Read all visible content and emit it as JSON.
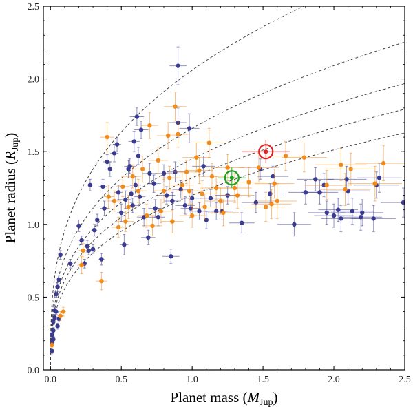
{
  "chart_data": {
    "type": "scatter",
    "title": "",
    "xlabel": {
      "prefix": "Planet mass (",
      "symbol": "M",
      "sub": "Jup",
      "suffix": ")"
    },
    "ylabel": {
      "prefix": "Planet radius (",
      "symbol": "R",
      "sub": "Jup",
      "suffix": ")"
    },
    "xlim": [
      -0.05,
      2.5
    ],
    "ylim": [
      0.0,
      2.5
    ],
    "x_ticks": [
      0.0,
      0.5,
      1.0,
      1.5,
      2.0,
      2.5
    ],
    "x_tick_labels": [
      "0.0",
      "0.5",
      "1.0",
      "1.5",
      "2.0",
      "2.5"
    ],
    "y_ticks": [
      0.0,
      0.5,
      1.0,
      1.5,
      2.0,
      2.5
    ],
    "y_tick_labels": [
      "0.0",
      "0.5",
      "1.0",
      "1.5",
      "2.0",
      "2.5"
    ],
    "grid": false,
    "colors": {
      "series_a": "#3b3b8f",
      "series_b": "#f08c1e",
      "highlight_red": "#e02020",
      "highlight_green": "#20a020",
      "curve": "#444444"
    },
    "curves": [
      {
        "name": "iso-density 1",
        "a": 2.06
      },
      {
        "name": "iso-density 2",
        "a": 1.66
      },
      {
        "name": "iso-density 3",
        "a": 1.45
      },
      {
        "name": "iso-density 4",
        "a": 1.32
      },
      {
        "name": "iso-density 5",
        "a": 1.2
      }
    ],
    "series": [
      {
        "name": "series-blue",
        "color": "#3b3b8f",
        "points": [
          [
            0.01,
            0.13,
            0.01,
            0.02
          ],
          [
            0.01,
            0.19,
            0.01,
            0.02
          ],
          [
            0.01,
            0.24,
            0.01,
            0.02
          ],
          [
            0.02,
            0.27,
            0.01,
            0.02
          ],
          [
            0.02,
            0.33,
            0.01,
            0.02
          ],
          [
            0.03,
            0.36,
            0.01,
            0.02
          ],
          [
            0.03,
            0.41,
            0.01,
            0.02
          ],
          [
            0.04,
            0.4,
            0.01,
            0.02
          ],
          [
            0.04,
            0.52,
            0.01,
            0.02
          ],
          [
            0.05,
            0.57,
            0.01,
            0.03
          ],
          [
            0.06,
            0.62,
            0.01,
            0.03
          ],
          [
            0.07,
            0.79,
            0.01,
            0.03
          ],
          [
            0.05,
            0.3,
            0.01,
            0.02
          ],
          [
            0.06,
            0.35,
            0.01,
            0.02
          ],
          [
            0.02,
            0.21,
            0.01,
            0.02
          ],
          [
            0.14,
            0.73,
            0.02,
            0.03
          ],
          [
            0.2,
            0.99,
            0.02,
            0.04
          ],
          [
            0.22,
            0.89,
            0.02,
            0.03
          ],
          [
            0.24,
            0.73,
            0.02,
            0.03
          ],
          [
            0.26,
            0.85,
            0.02,
            0.04
          ],
          [
            0.27,
            0.82,
            0.02,
            0.03
          ],
          [
            0.28,
            1.27,
            0.02,
            0.04
          ],
          [
            0.3,
            0.83,
            0.02,
            0.03
          ],
          [
            0.31,
            0.96,
            0.02,
            0.04
          ],
          [
            0.33,
            1.03,
            0.02,
            0.04
          ],
          [
            0.36,
            0.76,
            0.02,
            0.04
          ],
          [
            0.37,
            1.26,
            0.03,
            0.05
          ],
          [
            0.38,
            1.11,
            0.03,
            0.05
          ],
          [
            0.4,
            1.43,
            0.03,
            0.05
          ],
          [
            0.42,
            1.38,
            0.03,
            0.05
          ],
          [
            0.45,
            1.49,
            0.03,
            0.06
          ],
          [
            0.47,
            1.55,
            0.03,
            0.05
          ],
          [
            0.48,
            1.22,
            0.03,
            0.05
          ],
          [
            0.5,
            1.08,
            0.03,
            0.06
          ],
          [
            0.52,
            0.86,
            0.03,
            0.07
          ],
          [
            0.53,
            1.17,
            0.04,
            0.06
          ],
          [
            0.55,
            1.38,
            0.04,
            0.06
          ],
          [
            0.56,
            1.4,
            0.04,
            0.05
          ],
          [
            0.57,
            1.21,
            0.04,
            0.06
          ],
          [
            0.58,
            1.13,
            0.04,
            0.05
          ],
          [
            0.59,
            1.57,
            0.04,
            0.07
          ],
          [
            0.6,
            1.27,
            0.04,
            0.06
          ],
          [
            0.61,
            1.74,
            0.05,
            0.06
          ],
          [
            0.62,
            1.47,
            0.04,
            0.06
          ],
          [
            0.63,
            1.19,
            0.04,
            0.05
          ],
          [
            0.64,
            1.65,
            0.05,
            0.06
          ],
          [
            0.66,
            1.05,
            0.05,
            0.06
          ],
          [
            0.69,
            0.91,
            0.05,
            0.05
          ],
          [
            0.7,
            1.35,
            0.05,
            0.07
          ],
          [
            0.73,
            1.28,
            0.05,
            0.06
          ],
          [
            0.74,
            1.11,
            0.05,
            0.06
          ],
          [
            0.76,
            1.05,
            0.05,
            0.06
          ],
          [
            0.8,
            1.35,
            0.06,
            0.06
          ],
          [
            0.82,
            1.2,
            0.06,
            0.06
          ],
          [
            0.85,
            0.78,
            0.06,
            0.05
          ],
          [
            0.86,
            1.16,
            0.06,
            0.06
          ],
          [
            0.88,
            1.36,
            0.06,
            0.07
          ],
          [
            0.9,
            2.09,
            0.06,
            0.13
          ],
          [
            0.9,
            1.7,
            0.06,
            0.1
          ],
          [
            0.92,
            1.24,
            0.06,
            0.06
          ],
          [
            0.95,
            1.13,
            0.07,
            0.06
          ],
          [
            0.98,
            1.66,
            0.07,
            0.1
          ],
          [
            0.99,
            1.11,
            0.07,
            0.06
          ],
          [
            1.0,
            1.18,
            0.07,
            0.06
          ],
          [
            1.05,
            1.09,
            0.07,
            0.06
          ],
          [
            1.08,
            1.4,
            0.08,
            0.07
          ],
          [
            1.1,
            1.03,
            0.08,
            0.06
          ],
          [
            1.13,
            1.18,
            0.08,
            0.06
          ],
          [
            1.17,
            1.09,
            0.08,
            0.06
          ],
          [
            1.21,
            1.09,
            0.08,
            0.06
          ],
          [
            1.25,
            1.2,
            0.09,
            0.06
          ],
          [
            1.35,
            1.01,
            0.09,
            0.07
          ],
          [
            1.45,
            1.15,
            0.1,
            0.07
          ],
          [
            1.48,
            1.38,
            0.1,
            0.07
          ],
          [
            1.55,
            1.21,
            0.11,
            0.07
          ],
          [
            1.57,
            1.33,
            0.11,
            0.07
          ],
          [
            1.8,
            1.22,
            0.12,
            0.08
          ],
          [
            1.87,
            1.31,
            0.13,
            0.08
          ],
          [
            1.9,
            1.22,
            0.13,
            0.08
          ],
          [
            1.95,
            1.08,
            0.13,
            0.08
          ],
          [
            2.0,
            1.06,
            0.14,
            0.08
          ],
          [
            2.03,
            1.1,
            0.14,
            0.08
          ],
          [
            2.05,
            1.04,
            0.14,
            0.09
          ],
          [
            2.09,
            1.31,
            0.14,
            0.09
          ],
          [
            2.1,
            1.23,
            0.15,
            0.09
          ],
          [
            2.13,
            1.09,
            0.15,
            0.09
          ],
          [
            2.19,
            1.05,
            0.15,
            0.09
          ],
          [
            2.2,
            1.08,
            0.15,
            0.09
          ],
          [
            2.28,
            1.04,
            0.16,
            0.09
          ],
          [
            2.3,
            1.27,
            0.16,
            0.09
          ],
          [
            2.32,
            1.32,
            0.16,
            0.1
          ],
          [
            2.49,
            1.15,
            0.16,
            0.1
          ],
          [
            1.72,
            1.0,
            0.12,
            0.08
          ],
          [
            1.93,
            1.27,
            0.13,
            0.08
          ]
        ]
      },
      {
        "name": "series-orange",
        "color": "#f08c1e",
        "points": [
          [
            0.01,
            0.17,
            0.01,
            0.02
          ],
          [
            0.07,
            0.37,
            0.02,
            0.03
          ],
          [
            0.09,
            0.4,
            0.02,
            0.03
          ],
          [
            0.22,
            0.72,
            0.03,
            0.06
          ],
          [
            0.23,
            0.82,
            0.03,
            0.05
          ],
          [
            0.36,
            0.61,
            0.04,
            0.06
          ],
          [
            0.4,
            1.6,
            0.05,
            0.1
          ],
          [
            0.41,
            1.19,
            0.04,
            0.08
          ],
          [
            0.45,
            1.16,
            0.05,
            0.07
          ],
          [
            0.48,
            0.98,
            0.05,
            0.07
          ],
          [
            0.51,
            1.26,
            0.05,
            0.07
          ],
          [
            0.53,
            1.02,
            0.06,
            0.07
          ],
          [
            0.55,
            1.12,
            0.05,
            0.08
          ],
          [
            0.58,
            1.33,
            0.06,
            0.08
          ],
          [
            0.62,
            1.23,
            0.06,
            0.08
          ],
          [
            0.65,
            1.38,
            0.07,
            0.09
          ],
          [
            0.68,
            1.06,
            0.06,
            0.08
          ],
          [
            0.7,
            1.68,
            0.06,
            0.09
          ],
          [
            0.72,
            0.99,
            0.07,
            0.07
          ],
          [
            0.76,
            1.44,
            0.07,
            0.09
          ],
          [
            0.78,
            1.09,
            0.07,
            0.08
          ],
          [
            0.8,
            1.23,
            0.07,
            0.08
          ],
          [
            0.83,
            1.61,
            0.08,
            0.09
          ],
          [
            0.84,
            1.32,
            0.08,
            0.08
          ],
          [
            0.86,
            1.02,
            0.08,
            0.08
          ],
          [
            0.88,
            1.81,
            0.08,
            0.1
          ],
          [
            0.9,
            1.62,
            0.08,
            0.09
          ],
          [
            0.93,
            1.27,
            0.08,
            0.09
          ],
          [
            0.96,
            1.36,
            0.09,
            0.08
          ],
          [
            0.98,
            1.23,
            0.09,
            0.09
          ],
          [
            1.0,
            1.06,
            0.09,
            0.08
          ],
          [
            1.03,
            1.46,
            0.1,
            0.1
          ],
          [
            1.05,
            1.37,
            0.1,
            0.09
          ],
          [
            1.07,
            1.21,
            0.1,
            0.09
          ],
          [
            1.09,
            1.12,
            0.1,
            0.09
          ],
          [
            1.12,
            1.56,
            0.11,
            0.1
          ],
          [
            1.14,
            1.33,
            0.1,
            0.09
          ],
          [
            1.17,
            1.25,
            0.11,
            0.08
          ],
          [
            1.2,
            1.16,
            0.11,
            0.09
          ],
          [
            1.22,
            1.08,
            0.11,
            0.09
          ],
          [
            1.25,
            1.39,
            0.12,
            0.09
          ],
          [
            1.3,
            1.25,
            0.12,
            0.1
          ],
          [
            1.32,
            1.2,
            0.12,
            0.09
          ],
          [
            1.4,
            1.29,
            0.13,
            0.1
          ],
          [
            1.47,
            1.39,
            0.14,
            0.1
          ],
          [
            1.52,
            1.12,
            0.14,
            0.1
          ],
          [
            1.56,
            1.14,
            0.14,
            0.1
          ],
          [
            1.58,
            1.28,
            0.14,
            0.1
          ],
          [
            1.6,
            1.16,
            0.14,
            0.12
          ],
          [
            1.66,
            1.47,
            0.15,
            0.1
          ],
          [
            1.79,
            1.46,
            0.16,
            0.1
          ],
          [
            1.95,
            1.27,
            0.16,
            0.1
          ],
          [
            2.05,
            1.41,
            0.18,
            0.11
          ],
          [
            2.08,
            1.24,
            0.18,
            0.11
          ],
          [
            2.12,
            1.38,
            0.18,
            0.11
          ],
          [
            2.35,
            1.42,
            0.2,
            0.12
          ],
          [
            2.29,
            1.28,
            0.19,
            0.12
          ]
        ]
      }
    ],
    "highlights": [
      {
        "name": "highlight-red",
        "x": 1.52,
        "y": 1.5,
        "xerr": 0.17,
        "yerr": 0.08,
        "color": "#e02020"
      },
      {
        "name": "highlight-green",
        "x": 1.28,
        "y": 1.32,
        "xerr": 0.1,
        "yerr": 0.07,
        "color": "#20a020"
      }
    ]
  }
}
